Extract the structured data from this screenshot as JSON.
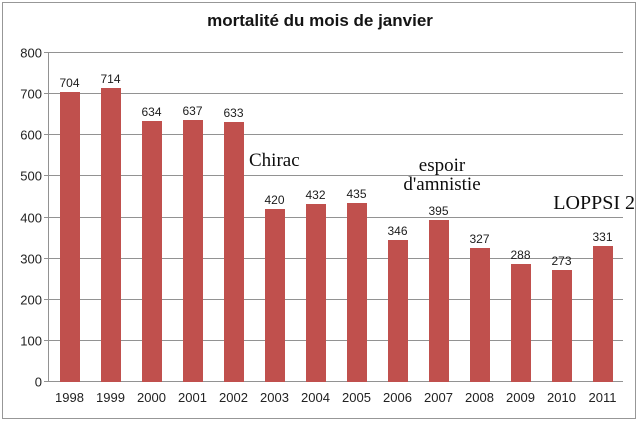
{
  "chart_data": {
    "type": "bar",
    "title": "mortalité du mois de janvier",
    "categories": [
      "1998",
      "1999",
      "2000",
      "2001",
      "2002",
      "2003",
      "2004",
      "2005",
      "2006",
      "2007",
      "2008",
      "2009",
      "2010",
      "2011"
    ],
    "values": [
      704,
      714,
      634,
      637,
      633,
      420,
      432,
      435,
      346,
      395,
      327,
      288,
      273,
      331
    ],
    "xlabel": "",
    "ylabel": "",
    "ylim": [
      0,
      800
    ],
    "y_ticks": [
      0,
      100,
      200,
      300,
      400,
      500,
      600,
      700,
      800
    ],
    "grid": "horizontal",
    "legend": "none",
    "bar_color": "#C0504D",
    "gridline_color": "#929292",
    "annotations": {
      "chirac": "Chirac",
      "amnistie_line1": "espoir",
      "amnistie_line2": "d'amnistie",
      "loppsi": "LOPPSI 2"
    }
  }
}
